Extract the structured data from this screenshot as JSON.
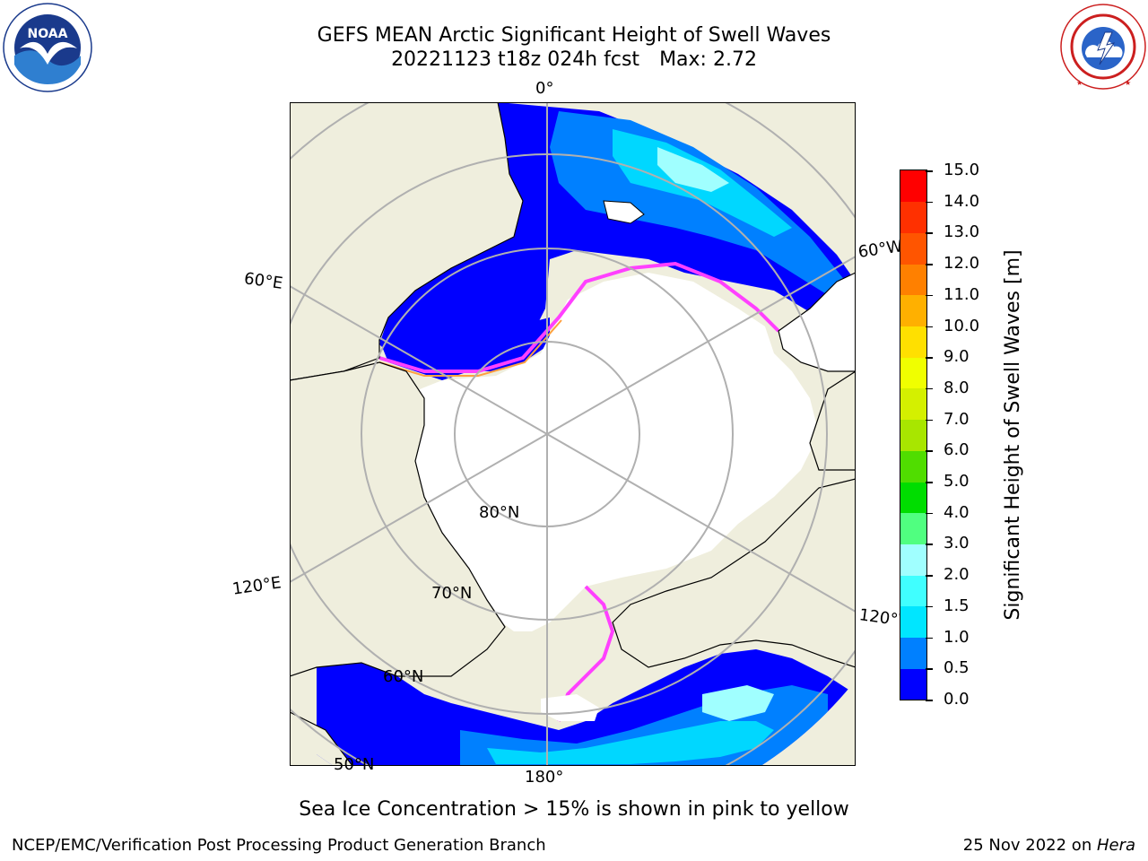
{
  "header": {
    "title_line1": "GEFS MEAN Arctic Significant Height of Swell Waves",
    "run": "20221123 t18z 024h fcst",
    "max_label": "Max: 2.72"
  },
  "logos": {
    "left": {
      "ring_text": "NATIONAL OCEANIC AND ATMOSPHERIC ADMINISTRATION · U.S. DEPARTMENT OF COMMERCE",
      "center_text": "NOAA",
      "color": "#1a3a8c"
    },
    "right": {
      "ring_text": "NATIONAL WEATHER SERVICE",
      "color": "#cc1f1f"
    }
  },
  "map": {
    "colors": {
      "land": "#efeedd",
      "ocean_no_data": "#ffffff",
      "grid": "#b0b0b0",
      "coast": "#000000"
    },
    "longitude_labels": [
      "0°",
      "60°E",
      "120°E",
      "180°",
      "120°W",
      "60°W"
    ],
    "latitude_labels": [
      "80°N",
      "70°N",
      "60°N",
      "50°N"
    ]
  },
  "colorbar": {
    "label": "Significant Height of Swell Waves [m]",
    "levels": [
      "0.0",
      "0.5",
      "1.0",
      "1.5",
      "2.0",
      "3.0",
      "4.0",
      "5.0",
      "6.0",
      "7.0",
      "8.0",
      "9.0",
      "10.0",
      "11.0",
      "12.0",
      "13.0",
      "14.0",
      "15.0"
    ],
    "colors": [
      "#0000ff",
      "#0080ff",
      "#00e6ff",
      "#40ffff",
      "#a0ffff",
      "#50ff80",
      "#00dd00",
      "#50dd00",
      "#a8e600",
      "#d4f000",
      "#f0ff00",
      "#ffe000",
      "#ffb000",
      "#ff8000",
      "#ff5500",
      "#ff3000",
      "#ff0000"
    ]
  },
  "caption": "Sea Ice Concentration > 15% is shown in pink to yellow",
  "footer": {
    "left": "NCEP/EMC/Verification Post Processing Product Generation Branch",
    "date": "25 Nov 2022 on ",
    "host": "Hera"
  }
}
